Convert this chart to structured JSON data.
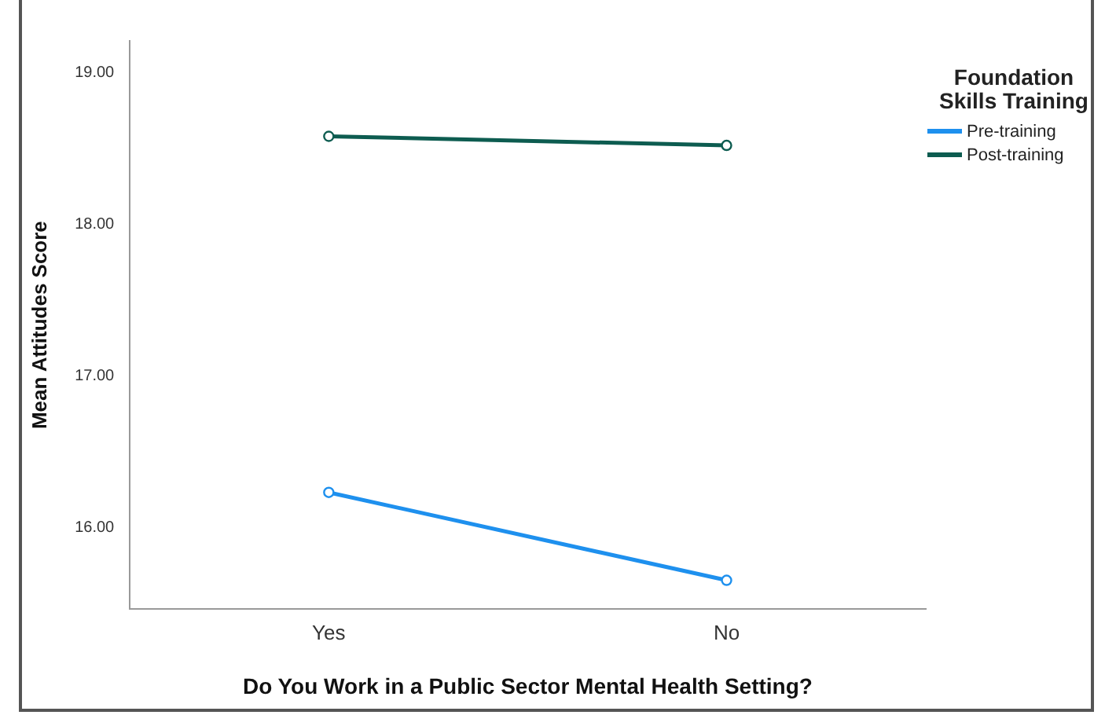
{
  "chart_data": {
    "type": "line",
    "xlabel": "Do You Work in a Public Sector Mental Health Setting?",
    "ylabel": "Mean Attitudes Score",
    "legend_title": "Foundation Skills Training",
    "categories": [
      "Yes",
      "No"
    ],
    "series": [
      {
        "name": "Pre-training",
        "color": "#1e90ee",
        "values": [
          16.23,
          15.65
        ]
      },
      {
        "name": "Post-training",
        "color": "#0d5c50",
        "values": [
          18.58,
          18.52
        ]
      }
    ],
    "ylim": [
      15.46,
      19.21
    ],
    "yticks": [
      {
        "value": 16,
        "label": "16.00"
      },
      {
        "value": 17,
        "label": "17.00"
      },
      {
        "value": 18,
        "label": "18.00"
      },
      {
        "value": 19,
        "label": "19.00"
      }
    ],
    "grid": false,
    "legend": "top right",
    "marker": "circle",
    "line_style": "solid"
  }
}
